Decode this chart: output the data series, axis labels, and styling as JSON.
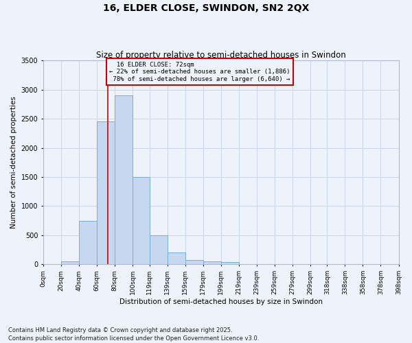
{
  "title_line1": "16, ELDER CLOSE, SWINDON, SN2 2QX",
  "title_line2": "Size of property relative to semi-detached houses in Swindon",
  "xlabel": "Distribution of semi-detached houses by size in Swindon",
  "ylabel": "Number of semi-detached properties",
  "property_size": 72,
  "property_label": "16 ELDER CLOSE: 72sqm",
  "pct_smaller": 22,
  "pct_larger": 78,
  "count_smaller": 1886,
  "count_larger": 6640,
  "bin_labels": [
    "0sqm",
    "20sqm",
    "40sqm",
    "60sqm",
    "80sqm",
    "100sqm",
    "119sqm",
    "139sqm",
    "159sqm",
    "179sqm",
    "199sqm",
    "219sqm",
    "239sqm",
    "259sqm",
    "279sqm",
    "299sqm",
    "318sqm",
    "338sqm",
    "358sqm",
    "378sqm",
    "398sqm"
  ],
  "bin_edges": [
    0,
    20,
    40,
    60,
    80,
    100,
    119,
    139,
    159,
    179,
    199,
    219,
    239,
    259,
    279,
    299,
    318,
    338,
    358,
    378,
    398
  ],
  "bar_heights": [
    5,
    50,
    750,
    2450,
    2900,
    1500,
    500,
    200,
    75,
    50,
    35,
    10,
    5,
    3,
    2,
    1,
    1,
    1,
    0,
    0
  ],
  "bar_color": "#c5d8f0",
  "bar_edge_color": "#7aaed6",
  "red_line_color": "#cc0000",
  "background_color": "#eef2fb",
  "grid_color": "#c8d4e8",
  "ylim": [
    0,
    3500
  ],
  "yticks": [
    0,
    500,
    1000,
    1500,
    2000,
    2500,
    3000,
    3500
  ],
  "footnote": "Contains HM Land Registry data © Crown copyright and database right 2025.\nContains public sector information licensed under the Open Government Licence v3.0."
}
